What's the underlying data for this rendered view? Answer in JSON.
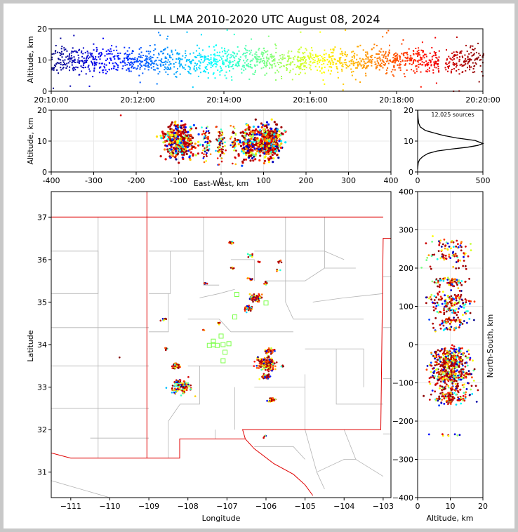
{
  "title": "LL LMA 2010-2020 UTC August 08, 2024",
  "colors": {
    "border": "#c8c8c8",
    "state_line": "#e00000",
    "county_line": "#b4b4b4",
    "station_marker": "#7cff4a",
    "grid": "#e8e8e8"
  },
  "chart_data": [
    {
      "type": "scatter",
      "name": "time-altitude",
      "ylabel": "Altitude, km",
      "ylim": [
        0,
        20
      ],
      "yticks": [
        "0",
        "10",
        "20"
      ],
      "xlim": [
        "20:10:00",
        "20:20:00"
      ],
      "xticks": [
        "20:10:00",
        "20:12:00",
        "20:14:00",
        "20:16:00",
        "20:18:00",
        "20:20:00"
      ],
      "color_by": "time",
      "colormap": "jet",
      "sources": {
        "t_start_min": 0,
        "t_end_min": 10,
        "alt_center_km": 10,
        "alt_spread_km": 2
      }
    },
    {
      "type": "scatter",
      "name": "east-west-altitude",
      "xlabel": "East-West, km",
      "ylabel": "Altitude, km",
      "xlim": [
        -400,
        400
      ],
      "ylim": [
        0,
        20
      ],
      "xticks": [
        "-400",
        "-300",
        "-200",
        "-100",
        "0",
        "100",
        "200",
        "300",
        "400"
      ],
      "yticks": [
        "0",
        "10",
        "20"
      ],
      "clusters": [
        {
          "x": -100,
          "alt": 10,
          "dx": 18,
          "n": 380
        },
        {
          "x": -35,
          "alt": 9,
          "dx": 5,
          "n": 60
        },
        {
          "x": 0,
          "alt": 9,
          "dx": 6,
          "n": 70
        },
        {
          "x": 30,
          "alt": 9,
          "dx": 4,
          "n": 40
        },
        {
          "x": 65,
          "alt": 9,
          "dx": 10,
          "n": 160
        },
        {
          "x": 112,
          "alt": 10,
          "dx": 14,
          "n": 420
        },
        {
          "x": -235,
          "alt": 17,
          "dx": 1,
          "n": 1
        }
      ]
    },
    {
      "type": "line",
      "name": "altitude-histogram",
      "annotation": "12,025 sources",
      "xlim": [
        0,
        500
      ],
      "ylim": [
        0,
        20
      ],
      "xticks": [
        "0",
        "500"
      ],
      "yticks": [
        "0",
        "10",
        "20"
      ],
      "x": [
        0,
        5,
        15,
        40,
        80,
        150,
        260,
        380,
        460,
        500,
        440,
        300,
        200,
        130,
        60,
        20,
        8,
        3,
        1
      ],
      "y": [
        1,
        3,
        4,
        5,
        6,
        6.8,
        7.4,
        8.0,
        8.6,
        9.2,
        10.2,
        11.0,
        11.8,
        12.6,
        13.4,
        14.6,
        15.8,
        17.5,
        20
      ]
    },
    {
      "type": "scatter",
      "name": "plan-view",
      "xlabel": "Longitude",
      "ylabel": "Latitude",
      "xlim": [
        -111.5,
        -102.8
      ],
      "ylim": [
        30.4,
        37.6
      ],
      "xticks": [
        "−111",
        "−110",
        "−109",
        "−108",
        "−107",
        "−106",
        "−105",
        "−104",
        "−103"
      ],
      "yticks": [
        "31",
        "32",
        "33",
        "34",
        "35",
        "36",
        "37"
      ],
      "clusters": [
        {
          "lon": -106.0,
          "lat": 33.55,
          "r": 0.12,
          "n": 180
        },
        {
          "lon": -106.25,
          "lat": 35.1,
          "r": 0.08,
          "n": 90
        },
        {
          "lon": -108.2,
          "lat": 33.0,
          "r": 0.15,
          "n": 120
        },
        {
          "lon": -108.3,
          "lat": 33.5,
          "r": 0.06,
          "n": 40
        },
        {
          "lon": -106.45,
          "lat": 34.85,
          "r": 0.06,
          "n": 30
        },
        {
          "lon": -106.0,
          "lat": 33.25,
          "r": 0.06,
          "n": 40
        },
        {
          "lon": -105.85,
          "lat": 32.7,
          "r": 0.05,
          "n": 35
        },
        {
          "lon": -105.9,
          "lat": 33.85,
          "r": 0.07,
          "n": 45
        },
        {
          "lon": -106.9,
          "lat": 36.4,
          "r": 0.04,
          "n": 12
        },
        {
          "lon": -106.4,
          "lat": 36.1,
          "r": 0.04,
          "n": 10
        },
        {
          "lon": -106.0,
          "lat": 35.45,
          "r": 0.04,
          "n": 12
        },
        {
          "lon": -106.4,
          "lat": 35.55,
          "r": 0.04,
          "n": 10
        },
        {
          "lon": -108.65,
          "lat": 34.6,
          "r": 0.04,
          "n": 8
        },
        {
          "lon": -108.55,
          "lat": 33.9,
          "r": 0.03,
          "n": 6
        },
        {
          "lon": -107.55,
          "lat": 35.45,
          "r": 0.03,
          "n": 6
        },
        {
          "lon": -107.2,
          "lat": 34.5,
          "r": 0.03,
          "n": 5
        },
        {
          "lon": -106.85,
          "lat": 35.8,
          "r": 0.03,
          "n": 5
        },
        {
          "lon": -106.2,
          "lat": 35.95,
          "r": 0.03,
          "n": 4
        },
        {
          "lon": -105.6,
          "lat": 35.95,
          "r": 0.04,
          "n": 6
        },
        {
          "lon": -105.7,
          "lat": 35.75,
          "r": 0.03,
          "n": 4
        },
        {
          "lon": -106.05,
          "lat": 31.85,
          "r": 0.03,
          "n": 5
        },
        {
          "lon": -105.6,
          "lat": 33.5,
          "r": 0.03,
          "n": 6
        },
        {
          "lon": -107.6,
          "lat": 34.35,
          "r": 0.02,
          "n": 3
        },
        {
          "lon": -109.75,
          "lat": 33.7,
          "r": 0.01,
          "n": 1
        }
      ],
      "stations": [
        [
          -106.75,
          35.18
        ],
        [
          -106.0,
          34.98
        ],
        [
          -106.8,
          34.65
        ],
        [
          -107.15,
          34.2
        ],
        [
          -107.35,
          34.08
        ],
        [
          -107.45,
          33.98
        ],
        [
          -107.25,
          33.98
        ],
        [
          -107.1,
          34.0
        ],
        [
          -106.95,
          34.02
        ],
        [
          -107.05,
          33.82
        ],
        [
          -107.1,
          33.62
        ],
        [
          -107.35,
          34.0
        ]
      ]
    },
    {
      "type": "scatter",
      "name": "altitude-north-south",
      "xlabel": "Altitude, km",
      "ylabel": "North-South, km",
      "xlim": [
        0,
        20
      ],
      "ylim": [
        -400,
        400
      ],
      "xticks": [
        "0",
        "10",
        "20"
      ],
      "yticks": [
        "−400",
        "−300",
        "−200",
        "−100",
        "0",
        "100",
        "200",
        "300",
        "400"
      ],
      "clusters": [
        {
          "ns": 260,
          "dy": 12,
          "n": 40
        },
        {
          "ns": 230,
          "dy": 10,
          "n": 40
        },
        {
          "ns": 200,
          "dy": 4,
          "n": 8
        },
        {
          "ns": 165,
          "dy": 6,
          "n": 60
        },
        {
          "ns": 115,
          "dy": 12,
          "n": 110
        },
        {
          "ns": 88,
          "dy": 5,
          "n": 40
        },
        {
          "ns": 62,
          "dy": 5,
          "n": 50
        },
        {
          "ns": 42,
          "dy": 3,
          "n": 20
        },
        {
          "ns": -20,
          "dy": 8,
          "n": 70
        },
        {
          "ns": -45,
          "dy": 10,
          "n": 200
        },
        {
          "ns": -80,
          "dy": 10,
          "n": 200
        },
        {
          "ns": -110,
          "dy": 8,
          "n": 60
        },
        {
          "ns": -140,
          "dy": 8,
          "n": 110
        },
        {
          "ns": -235,
          "dy": 5,
          "n": 8
        }
      ]
    }
  ]
}
